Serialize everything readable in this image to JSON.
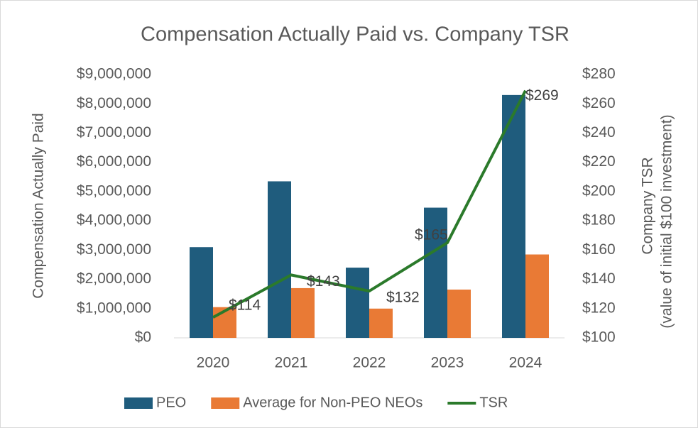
{
  "chart_data": {
    "type": "bar+line",
    "title": "Compensation Actually Paid vs. Company TSR",
    "y_label": "Compensation Actually Paid",
    "y2_label": [
      "Company TSR",
      "(value of initial $100 investment)"
    ],
    "categories": [
      "2020",
      "2021",
      "2022",
      "2023",
      "2024"
    ],
    "series": [
      {
        "name": "PEO",
        "type": "bar",
        "color": "#1f5c7d",
        "values": [
          3100000,
          5350000,
          2400000,
          4450000,
          8300000
        ]
      },
      {
        "name": "Average for Non-PEO NEOs",
        "type": "bar",
        "color": "#e97a35",
        "values": [
          1050000,
          1700000,
          1000000,
          1650000,
          2850000
        ]
      },
      {
        "name": "TSR",
        "type": "line",
        "axis": "y2",
        "color": "#2b7a2b",
        "values": [
          114,
          143,
          132,
          165,
          269
        ],
        "value_labels": [
          "$114",
          "$143",
          "$132",
          "$165",
          "$269"
        ]
      }
    ],
    "ylim": [
      0,
      9000000
    ],
    "yticks": [
      {
        "value": 0,
        "label": "$0"
      },
      {
        "value": 1000000,
        "label": "$1,000,000"
      },
      {
        "value": 2000000,
        "label": "$2,000,000"
      },
      {
        "value": 3000000,
        "label": "$3,000,000"
      },
      {
        "value": 4000000,
        "label": "$4,000,000"
      },
      {
        "value": 5000000,
        "label": "$5,000,000"
      },
      {
        "value": 6000000,
        "label": "$6,000,000"
      },
      {
        "value": 7000000,
        "label": "$7,000,000"
      },
      {
        "value": 8000000,
        "label": "$8,000,000"
      },
      {
        "value": 9000000,
        "label": "$9,000,000"
      }
    ],
    "y2lim": [
      100,
      280
    ],
    "y2ticks": [
      {
        "value": 100,
        "label": "$100"
      },
      {
        "value": 120,
        "label": "$120"
      },
      {
        "value": 140,
        "label": "$140"
      },
      {
        "value": 160,
        "label": "$160"
      },
      {
        "value": 180,
        "label": "$180"
      },
      {
        "value": 200,
        "label": "$200"
      },
      {
        "value": 220,
        "label": "$220"
      },
      {
        "value": 240,
        "label": "$240"
      },
      {
        "value": 260,
        "label": "$260"
      },
      {
        "value": 280,
        "label": "$280"
      }
    ],
    "legend": "bottom"
  }
}
